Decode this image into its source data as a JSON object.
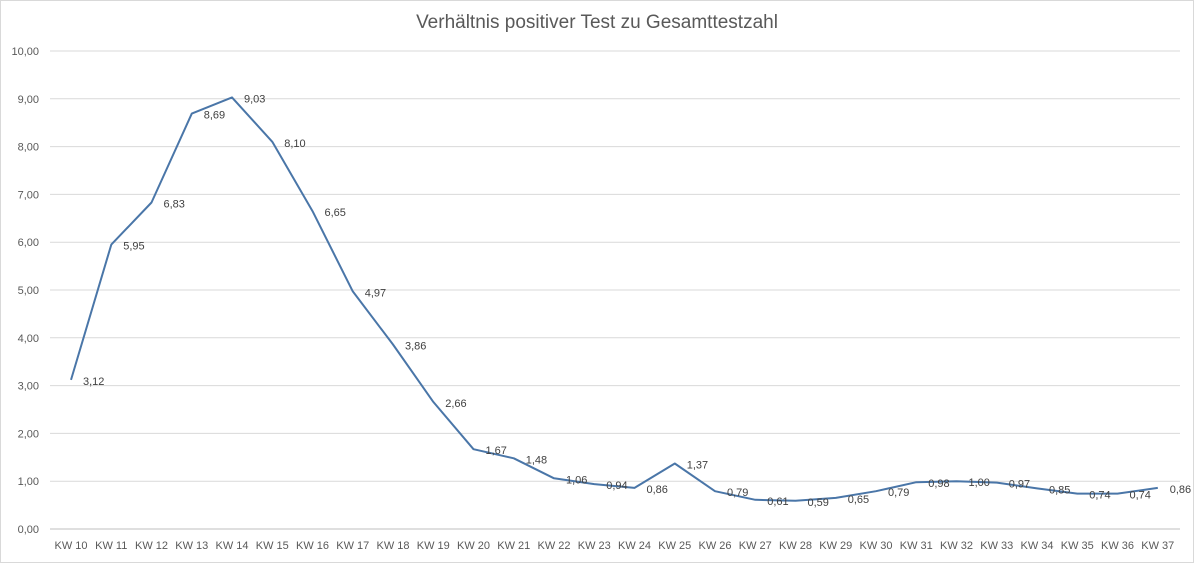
{
  "chart_data": {
    "type": "line",
    "title": "Verhältnis positiver Test zu Gesamttestzahl",
    "xlabel": "",
    "ylabel": "",
    "ylim": [
      0,
      10
    ],
    "y_ticks": [
      "0,00",
      "1,00",
      "2,00",
      "3,00",
      "4,00",
      "5,00",
      "6,00",
      "7,00",
      "8,00",
      "9,00",
      "10,00"
    ],
    "grid": true,
    "legend": "none",
    "line_color": "#4a76a8",
    "categories": [
      "KW 10",
      "KW 11",
      "KW 12",
      "KW 13",
      "KW 14",
      "KW 15",
      "KW 16",
      "KW 17",
      "KW 18",
      "KW 19",
      "KW 20",
      "KW 21",
      "KW 22",
      "KW 23",
      "KW 24",
      "KW 25",
      "KW 26",
      "KW 27",
      "KW 28",
      "KW 29",
      "KW 30",
      "KW 31",
      "KW 32",
      "KW 33",
      "KW 34",
      "KW 35",
      "KW 36",
      "KW 37"
    ],
    "values": [
      3.12,
      5.95,
      6.83,
      8.69,
      9.03,
      8.1,
      6.65,
      4.97,
      3.86,
      2.66,
      1.67,
      1.48,
      1.06,
      0.94,
      0.86,
      1.37,
      0.79,
      0.61,
      0.59,
      0.65,
      0.79,
      0.98,
      1.0,
      0.97,
      0.85,
      0.74,
      0.74,
      0.86
    ],
    "data_labels": [
      "3,12",
      "5,95",
      "6,83",
      "8,69",
      "9,03",
      "8,10",
      "6,65",
      "4,97",
      "3,86",
      "2,66",
      "1,67",
      "1,48",
      "1,06",
      "0,94",
      "0,86",
      "1,37",
      "0,79",
      "0,61",
      "0,59",
      "0,65",
      "0,79",
      "0,98",
      "1,00",
      "0,97",
      "0,85",
      "0,74",
      "0,74",
      "0,86"
    ]
  }
}
